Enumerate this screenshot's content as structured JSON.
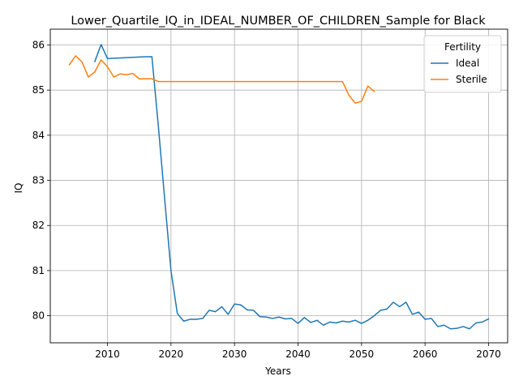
{
  "chart_data": {
    "type": "line",
    "title": "Lower_Quartile_IQ_in_IDEAL_NUMBER_OF_CHILDREN_Sample for Black",
    "xlabel": "Years",
    "ylabel": "IQ",
    "xlim": [
      2001,
      2073
    ],
    "ylim": [
      79.4,
      86.35
    ],
    "xticks": [
      2010,
      2020,
      2030,
      2040,
      2050,
      2060,
      2070
    ],
    "yticks": [
      80,
      81,
      82,
      83,
      84,
      85,
      86
    ],
    "grid": true,
    "legend": {
      "title": "Fertility",
      "placement": "top-right"
    },
    "colors": {
      "Ideal": "#1f77b4",
      "Sterile": "#ff7f0e"
    },
    "series": [
      {
        "name": "Ideal",
        "x": [
          2008,
          2009,
          2010,
          2016,
          2017,
          2018,
          2019,
          2020,
          2021,
          2022,
          2023,
          2024,
          2025,
          2026,
          2027,
          2028,
          2029,
          2030,
          2031,
          2032,
          2033,
          2034,
          2035,
          2036,
          2037,
          2038,
          2039,
          2040,
          2041,
          2042,
          2043,
          2044,
          2045,
          2046,
          2047,
          2048,
          2049,
          2050,
          2051,
          2052,
          2053,
          2054,
          2055,
          2056,
          2057,
          2058,
          2059,
          2060,
          2061,
          2062,
          2063,
          2064,
          2065,
          2066,
          2067,
          2068,
          2069,
          2070
        ],
        "values": [
          85.63,
          86.01,
          85.7,
          85.74,
          85.74,
          84.22,
          82.6,
          81.0,
          80.05,
          79.88,
          79.92,
          79.92,
          79.94,
          80.12,
          80.09,
          80.2,
          80.03,
          80.26,
          80.24,
          80.13,
          80.12,
          79.98,
          79.97,
          79.94,
          79.97,
          79.93,
          79.94,
          79.83,
          79.96,
          79.85,
          79.9,
          79.79,
          79.86,
          79.84,
          79.88,
          79.86,
          79.9,
          79.83,
          79.9,
          80.0,
          80.12,
          80.15,
          80.3,
          80.2,
          80.3,
          80.03,
          80.08,
          79.92,
          79.94,
          79.76,
          79.79,
          79.71,
          79.72,
          79.76,
          79.71,
          79.84,
          79.86,
          79.93
        ]
      },
      {
        "name": "Sterile",
        "x": [
          2004,
          2005,
          2006,
          2007,
          2008,
          2009,
          2010,
          2011,
          2012,
          2013,
          2014,
          2015,
          2016,
          2017,
          2018,
          2047,
          2048,
          2049,
          2050,
          2051,
          2052
        ],
        "values": [
          85.56,
          85.76,
          85.62,
          85.29,
          85.4,
          85.67,
          85.52,
          85.29,
          85.36,
          85.34,
          85.37,
          85.25,
          85.25,
          85.25,
          85.19,
          85.19,
          84.89,
          84.71,
          84.75,
          85.09,
          84.97
        ]
      }
    ]
  }
}
